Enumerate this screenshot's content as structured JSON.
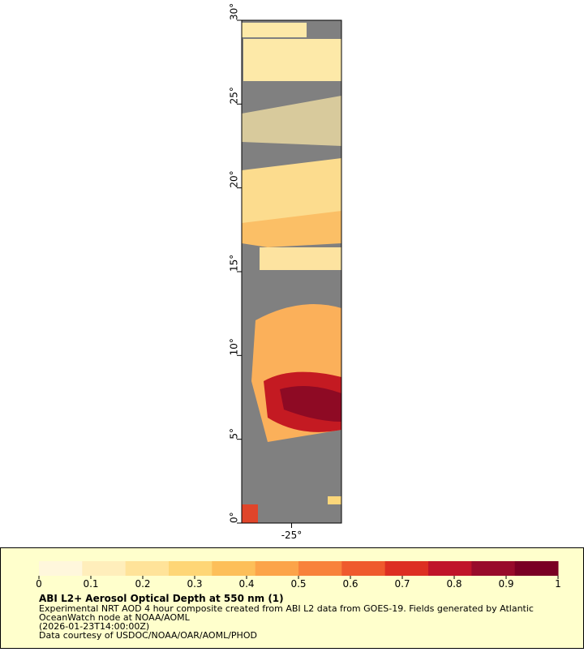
{
  "chart_data": {
    "type": "map",
    "title": "ABI L2+ Aerosol Optical Depth at 550 nm (1)",
    "notes": [
      "Experimental NRT AOD 4 hour composite created from ABI L2 data from GOES-19. Fields generated by Atlantic",
      "OceanWatch node at NOAA/AOML",
      "(2026-01-23T14:00:00Z)",
      "Data courtesy of USDOC/NOAA/OAR/AOML/PHOD"
    ],
    "xlim": [
      -28,
      -22
    ],
    "xticks": [
      {
        "value": -25,
        "label": "-25°"
      }
    ],
    "ylim": [
      0,
      30
    ],
    "yticks": [
      {
        "value": 0,
        "label": "0°"
      },
      {
        "value": 5,
        "label": "5°"
      },
      {
        "value": 10,
        "label": "10°"
      },
      {
        "value": 15,
        "label": "15°"
      },
      {
        "value": 20,
        "label": "20°"
      },
      {
        "value": 25,
        "label": "25°"
      },
      {
        "value": 30,
        "label": "30°"
      }
    ],
    "colorbar": {
      "lim": [
        0,
        1
      ],
      "ticks": [
        0,
        0.1,
        0.2,
        0.3,
        0.4,
        0.5,
        0.6,
        0.7,
        0.8,
        0.9,
        1
      ],
      "colors": [
        "#fff7dc",
        "#ffeebb",
        "#ffe399",
        "#fed676",
        "#fdbf59",
        "#fca449",
        "#f8823b",
        "#ef5a2d",
        "#dd2f22",
        "#c0142a",
        "#980b2b",
        "#7a0024"
      ]
    }
  }
}
